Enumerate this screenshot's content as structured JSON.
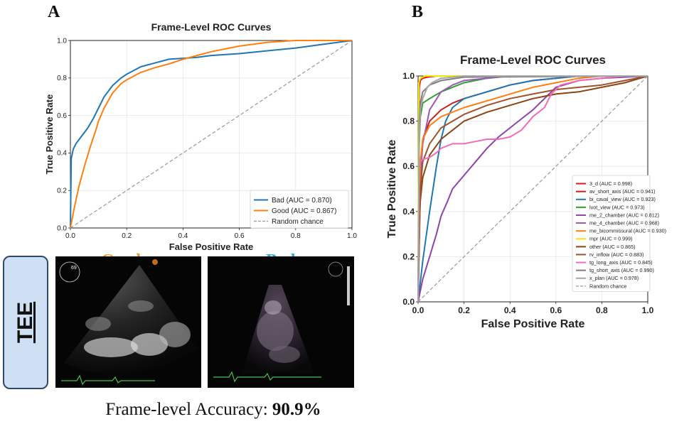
{
  "panel_labels": {
    "a": "A",
    "b": "B"
  },
  "chart_data": [
    {
      "type": "line",
      "title": "Frame-Level ROC Curves",
      "xlabel": "False Positive Rate",
      "ylabel": "True Positive Rate",
      "xlim": [
        0,
        1
      ],
      "ylim": [
        0,
        1
      ],
      "ticks": [
        "0.0",
        "0.2",
        "0.4",
        "0.6",
        "0.8",
        "1.0"
      ],
      "grid": true,
      "legend_position": "lower-right",
      "series": [
        {
          "name": "Bad (AUC = 0.870)",
          "color": "#1f77b4",
          "x": [
            0,
            0.003,
            0.01,
            0.02,
            0.04,
            0.06,
            0.08,
            0.1,
            0.12,
            0.15,
            0.18,
            0.2,
            0.25,
            0.3,
            0.35,
            0.4,
            0.45,
            0.5,
            0.6,
            0.7,
            0.8,
            0.9,
            1.0
          ],
          "y": [
            0,
            0.37,
            0.42,
            0.45,
            0.49,
            0.53,
            0.58,
            0.64,
            0.7,
            0.76,
            0.8,
            0.82,
            0.86,
            0.88,
            0.9,
            0.905,
            0.91,
            0.92,
            0.93,
            0.945,
            0.96,
            0.98,
            1.0
          ]
        },
        {
          "name": "Good (AUC = 0.867)",
          "color": "#ff7f0e",
          "x": [
            0,
            0.01,
            0.02,
            0.03,
            0.05,
            0.07,
            0.09,
            0.1,
            0.12,
            0.15,
            0.18,
            0.2,
            0.25,
            0.3,
            0.35,
            0.4,
            0.45,
            0.5,
            0.6,
            0.7,
            0.8,
            0.9,
            1.0
          ],
          "y": [
            0,
            0.08,
            0.15,
            0.22,
            0.33,
            0.43,
            0.52,
            0.57,
            0.64,
            0.72,
            0.77,
            0.79,
            0.83,
            0.855,
            0.875,
            0.9,
            0.92,
            0.94,
            0.97,
            0.99,
            1.0,
            1.0,
            1.0
          ]
        },
        {
          "name": "Random chance",
          "color": "#999999",
          "dashed": true,
          "x": [
            0,
            1
          ],
          "y": [
            0,
            1
          ]
        }
      ]
    },
    {
      "type": "line",
      "title": "Frame-Level ROC Curves",
      "xlabel": "False Positive Rate",
      "ylabel": "True Positive Rate",
      "xlim": [
        0,
        1
      ],
      "ylim": [
        0,
        1
      ],
      "ticks": [
        "0.0",
        "0.2",
        "0.4",
        "0.6",
        "0.8",
        "1.0"
      ],
      "grid": true,
      "legend_position": "center-right",
      "series": [
        {
          "name": "3_d (AUC = 0.998)",
          "color": "#e31a1c",
          "x": [
            0,
            0.005,
            0.01,
            0.02,
            0.04,
            0.08,
            0.2,
            1.0
          ],
          "y": [
            0,
            0.95,
            0.98,
            0.99,
            0.995,
            1.0,
            1.0,
            1.0
          ]
        },
        {
          "name": "av_short_axis (AUC = 0.941)",
          "color": "#c81e1e",
          "x": [
            0,
            0.005,
            0.01,
            0.02,
            0.05,
            0.1,
            0.15,
            0.2,
            0.3,
            0.4,
            0.5,
            0.6,
            0.7,
            1.0
          ],
          "y": [
            0,
            0.3,
            0.55,
            0.72,
            0.8,
            0.85,
            0.88,
            0.9,
            0.93,
            0.96,
            0.98,
            0.99,
            1.0,
            1.0
          ]
        },
        {
          "name": "bi_caval_view (AUC = 0.923)",
          "color": "#1f77b4",
          "x": [
            0,
            0.02,
            0.05,
            0.08,
            0.1,
            0.12,
            0.15,
            0.2,
            0.3,
            0.4,
            0.5,
            0.6,
            0.7,
            1.0
          ],
          "y": [
            0,
            0.18,
            0.4,
            0.6,
            0.72,
            0.8,
            0.86,
            0.9,
            0.93,
            0.96,
            0.98,
            0.99,
            1.0,
            1.0
          ]
        },
        {
          "name": "lvot_view (AUC = 0.973)",
          "color": "#2ca02c",
          "x": [
            0,
            0.005,
            0.01,
            0.02,
            0.05,
            0.1,
            0.2,
            0.3,
            0.4,
            0.5,
            1.0
          ],
          "y": [
            0,
            0.7,
            0.82,
            0.88,
            0.9,
            0.93,
            0.97,
            0.99,
            1.0,
            1.0,
            1.0
          ]
        },
        {
          "name": "me_2_chamber (AUC = 0.812)",
          "color": "#8e44ad",
          "x": [
            0,
            0.02,
            0.05,
            0.08,
            0.1,
            0.13,
            0.15,
            0.2,
            0.25,
            0.3,
            0.35,
            0.4,
            0.45,
            0.5,
            0.55,
            0.6,
            0.7,
            0.8,
            1.0
          ],
          "y": [
            0,
            0.1,
            0.2,
            0.3,
            0.38,
            0.45,
            0.5,
            0.56,
            0.62,
            0.68,
            0.73,
            0.77,
            0.81,
            0.85,
            0.9,
            0.95,
            0.98,
            0.99,
            1.0
          ]
        },
        {
          "name": "me_4_chamber (AUC = 0.968)",
          "color": "#9b59b6",
          "x": [
            0,
            0.01,
            0.02,
            0.05,
            0.1,
            0.15,
            0.2,
            0.3,
            0.4,
            1.0
          ],
          "y": [
            0,
            0.55,
            0.7,
            0.85,
            0.93,
            0.96,
            0.98,
            0.99,
            1.0,
            1.0
          ]
        },
        {
          "name": "me_bicommissural (AUC = 0.930)",
          "color": "#ff7f0e",
          "x": [
            0,
            0.005,
            0.01,
            0.02,
            0.05,
            0.1,
            0.2,
            0.3,
            0.4,
            0.5,
            0.6,
            0.7,
            0.8,
            1.0
          ],
          "y": [
            0,
            0.45,
            0.62,
            0.72,
            0.78,
            0.82,
            0.86,
            0.89,
            0.92,
            0.95,
            0.97,
            0.99,
            1.0,
            1.0
          ]
        },
        {
          "name": "mpr (AUC = 0.999)",
          "color": "#f5e600",
          "x": [
            0,
            0.003,
            0.01,
            0.03,
            0.1,
            1.0
          ],
          "y": [
            0,
            0.97,
            0.99,
            1.0,
            1.0,
            1.0
          ]
        },
        {
          "name": "other (AUC = 0.865)",
          "color": "#8b4513",
          "x": [
            0,
            0.005,
            0.01,
            0.02,
            0.05,
            0.1,
            0.15,
            0.2,
            0.3,
            0.4,
            0.5,
            0.6,
            0.7,
            0.8,
            0.9,
            1.0
          ],
          "y": [
            0,
            0.35,
            0.45,
            0.55,
            0.65,
            0.72,
            0.76,
            0.8,
            0.84,
            0.87,
            0.9,
            0.92,
            0.93,
            0.95,
            0.97,
            1.0
          ]
        },
        {
          "name": "rv_inflow (AUC = 0.883)",
          "color": "#a0522d",
          "x": [
            0,
            0.01,
            0.02,
            0.05,
            0.1,
            0.15,
            0.2,
            0.3,
            0.4,
            0.5,
            0.6,
            0.7,
            0.8,
            0.9,
            1.0
          ],
          "y": [
            0,
            0.5,
            0.62,
            0.7,
            0.77,
            0.8,
            0.83,
            0.87,
            0.9,
            0.92,
            0.94,
            0.95,
            0.96,
            0.98,
            1.0
          ]
        },
        {
          "name": "tg_long_axis (AUC = 0.845)",
          "color": "#f06cb9",
          "x": [
            0,
            0.005,
            0.01,
            0.02,
            0.05,
            0.08,
            0.1,
            0.15,
            0.2,
            0.25,
            0.3,
            0.35,
            0.4,
            0.45,
            0.5,
            0.55,
            0.58,
            0.62,
            0.7,
            0.8,
            0.9,
            1.0
          ],
          "y": [
            0,
            0.6,
            0.62,
            0.63,
            0.64,
            0.66,
            0.68,
            0.7,
            0.7,
            0.71,
            0.72,
            0.72,
            0.73,
            0.76,
            0.82,
            0.86,
            0.92,
            0.96,
            0.98,
            0.99,
            1.0,
            1.0
          ]
        },
        {
          "name": "tg_short_axis (AUC = 0.990)",
          "color": "#7f7f7f",
          "x": [
            0,
            0.005,
            0.01,
            0.02,
            0.05,
            0.1,
            0.2,
            1.0
          ],
          "y": [
            0,
            0.8,
            0.88,
            0.93,
            0.96,
            0.98,
            0.995,
            1.0
          ]
        },
        {
          "name": "x_plan (AUC = 0.978)",
          "color": "#a6a6a6",
          "x": [
            0,
            0.005,
            0.01,
            0.02,
            0.04,
            0.06,
            0.1,
            0.2,
            1.0
          ],
          "y": [
            0,
            0.72,
            0.85,
            0.9,
            0.95,
            0.97,
            0.99,
            1.0,
            1.0
          ]
        },
        {
          "name": "Random chance",
          "color": "#999999",
          "dashed": true,
          "x": [
            0,
            1
          ],
          "y": [
            0,
            1
          ]
        }
      ]
    }
  ],
  "images": {
    "good_title": "Good",
    "bad_title": "Bad",
    "good_color": "#f4952a",
    "bad_color": "#29abe2",
    "modality": "TEE",
    "good_depth": "69"
  },
  "accuracy": {
    "label": "Frame-level Accuracy:",
    "value": "90.9%"
  }
}
